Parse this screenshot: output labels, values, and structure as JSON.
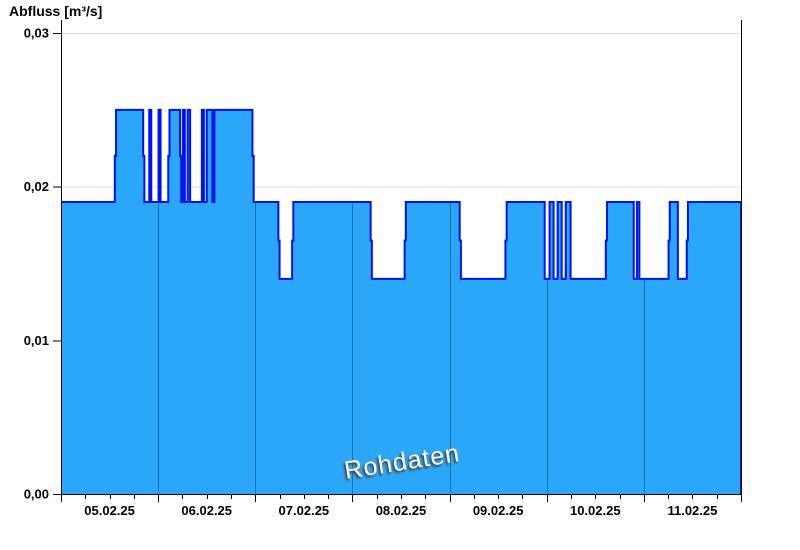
{
  "app": {
    "background_color": "#ffffff"
  },
  "chart_data": {
    "type": "area",
    "title": "Abfluss [m³/s]",
    "watermark": "Rohdaten",
    "grid": {
      "horizontal_gridlines": true,
      "horizontal_color": "#dcdcdc",
      "day_separator_color": "rgba(0,0,0,0.32)",
      "axis_color": "#000000"
    },
    "x_axis": {
      "kind": "time",
      "start_label": "05.02.25",
      "range_hours": [
        0,
        168
      ],
      "major_tick_hours": 24,
      "minor_tick_hours": 6,
      "tick_labels": [
        "05.02.25",
        "06.02.25",
        "07.02.25",
        "08.02.25",
        "09.02.25",
        "10.02.25",
        "11.02.25"
      ]
    },
    "y_axis": {
      "unit": "m³/s",
      "range": [
        0,
        0.03
      ],
      "tick_values": [
        0,
        0.01,
        0.02,
        0.03
      ],
      "tick_labels": [
        "0,00",
        "0,01",
        "0,02",
        "0,03"
      ]
    },
    "series": [
      {
        "name": "Rohdaten",
        "step": "after",
        "fill_color": "#2BA7FA",
        "line_color": "#0012F0",
        "points_hours_value": [
          [
            0,
            0.019
          ],
          [
            13.3,
            0.022
          ],
          [
            13.6,
            0.025
          ],
          [
            20.3,
            0.022
          ],
          [
            20.6,
            0.019
          ],
          [
            21.8,
            0.025
          ],
          [
            22.3,
            0.019
          ],
          [
            24.1,
            0.025
          ],
          [
            24.6,
            0.019
          ],
          [
            26.5,
            0.022
          ],
          [
            26.8,
            0.025
          ],
          [
            29.4,
            0.022
          ],
          [
            29.7,
            0.019
          ],
          [
            30.1,
            0.025
          ],
          [
            30.6,
            0.019
          ],
          [
            31.3,
            0.025
          ],
          [
            31.9,
            0.019
          ],
          [
            34.8,
            0.025
          ],
          [
            35.3,
            0.019
          ],
          [
            36.0,
            0.025
          ],
          [
            37.4,
            0.019
          ],
          [
            37.9,
            0.025
          ],
          [
            47.3,
            0.022
          ],
          [
            47.6,
            0.019
          ],
          [
            53.7,
            0.0165
          ],
          [
            54.0,
            0.014
          ],
          [
            57.1,
            0.0165
          ],
          [
            57.4,
            0.019
          ],
          [
            76.5,
            0.0165
          ],
          [
            76.8,
            0.014
          ],
          [
            84.9,
            0.0165
          ],
          [
            85.2,
            0.019
          ],
          [
            98.5,
            0.0165
          ],
          [
            98.8,
            0.014
          ],
          [
            109.8,
            0.0165
          ],
          [
            110.1,
            0.019
          ],
          [
            119.5,
            0.014
          ],
          [
            120.7,
            0.019
          ],
          [
            121.7,
            0.014
          ],
          [
            122.7,
            0.019
          ],
          [
            123.7,
            0.014
          ],
          [
            124.7,
            0.019
          ],
          [
            125.9,
            0.014
          ],
          [
            134.6,
            0.0165
          ],
          [
            134.9,
            0.019
          ],
          [
            141.5,
            0.014
          ],
          [
            142.3,
            0.019
          ],
          [
            142.9,
            0.014
          ],
          [
            150.1,
            0.0165
          ],
          [
            150.4,
            0.019
          ],
          [
            152.4,
            0.014
          ],
          [
            154.6,
            0.0165
          ],
          [
            154.9,
            0.019
          ],
          [
            168,
            0.019
          ]
        ]
      }
    ]
  }
}
